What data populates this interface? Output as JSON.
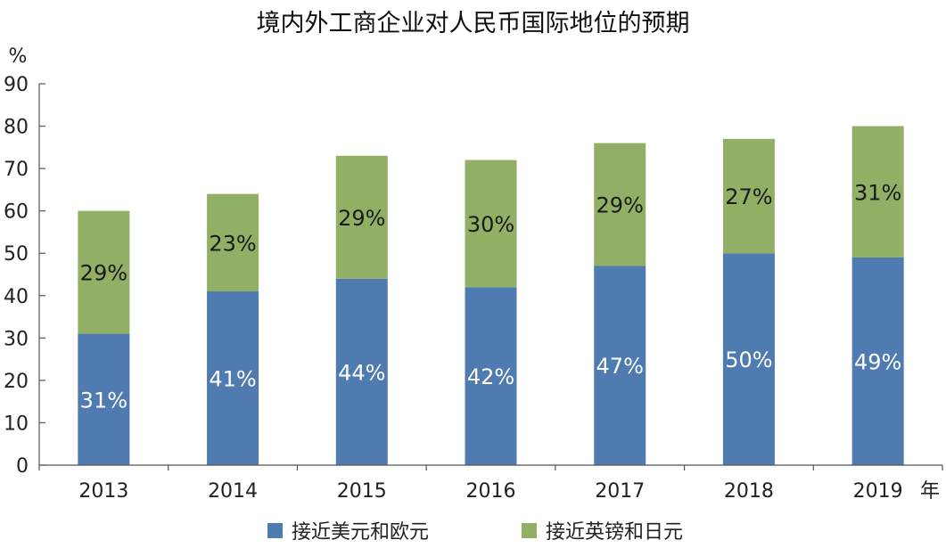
{
  "chart_data": {
    "type": "bar",
    "stacked": true,
    "title": "境内外工商企业对人民币国际地位的预期",
    "ylabel": "%",
    "xlabel": "年",
    "ylim": [
      0,
      90
    ],
    "yticks": [
      0,
      10,
      20,
      30,
      40,
      50,
      60,
      70,
      80,
      90
    ],
    "categories": [
      "2013",
      "2014",
      "2015",
      "2016",
      "2017",
      "2018",
      "2019"
    ],
    "series": [
      {
        "name": "接近美元和欧元",
        "color": "#4f7bb0",
        "values": [
          31,
          41,
          44,
          42,
          47,
          50,
          49
        ],
        "labels": [
          "31%",
          "41%",
          "44%",
          "42%",
          "47%",
          "50%",
          "49%"
        ]
      },
      {
        "name": "接近英镑和日元",
        "color": "#92b065",
        "values": [
          29,
          23,
          29,
          30,
          29,
          27,
          31
        ],
        "labels": [
          "29%",
          "23%",
          "29%",
          "30%",
          "29%",
          "27%",
          "31%"
        ]
      }
    ],
    "grid": false,
    "legend_position": "bottom"
  }
}
